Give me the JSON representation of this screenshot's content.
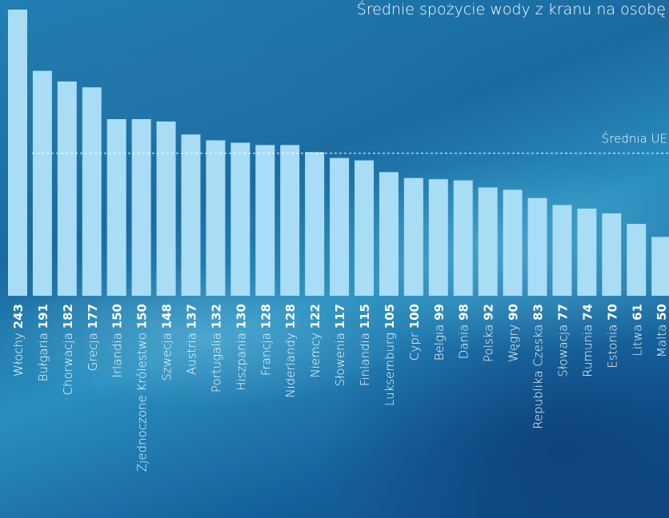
{
  "chart_data": {
    "type": "bar",
    "title": "Średnie spożycie wody z kranu na osobę",
    "categories": [
      "Włochy",
      "Bułgaria",
      "Chorwacja",
      "Grecja",
      "Irlandia",
      "Zjednoczone Królestwo",
      "Szwecja",
      "Austria",
      "Portugalia",
      "Hiszpania",
      "Francja",
      "Niderlandy",
      "Niemcy",
      "Słowenia",
      "Finlandia",
      "Luksemburg",
      "Cypr",
      "Belgia",
      "Dania",
      "Polska",
      "Węgry",
      "Republika Czeska",
      "Słowacja",
      "Rumunia",
      "Estonia",
      "Litwa",
      "Malta"
    ],
    "values": [
      243,
      191,
      182,
      177,
      150,
      150,
      148,
      137,
      132,
      130,
      128,
      128,
      122,
      117,
      115,
      105,
      100,
      99,
      98,
      92,
      90,
      83,
      77,
      74,
      70,
      61,
      50
    ],
    "color": "#a9dcf5",
    "reference_line": {
      "label": "Średnia UE",
      "value": 121
    }
  }
}
